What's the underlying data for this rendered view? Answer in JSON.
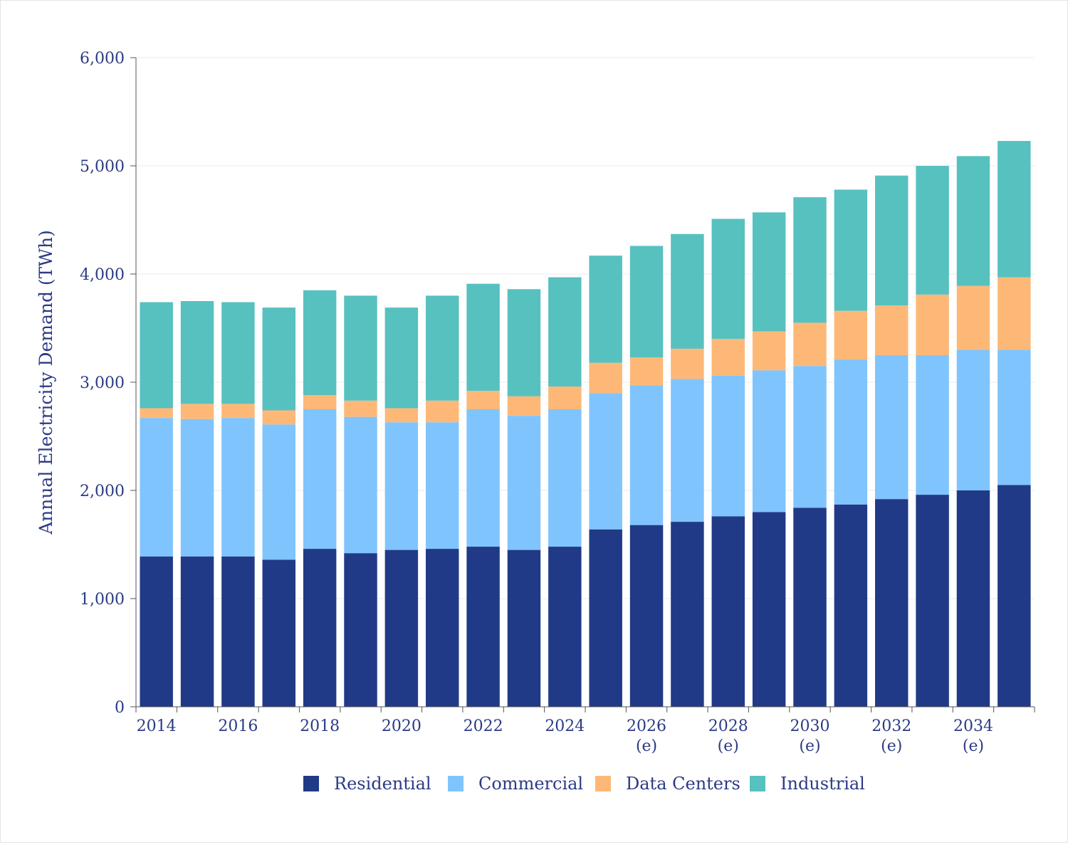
{
  "chart_data": {
    "type": "bar",
    "stacked": true,
    "title": "",
    "xlabel": "",
    "ylabel": "Annual Electricity Demand (TWh)",
    "ylim": [
      0,
      6000
    ],
    "yticks": [
      "0",
      "1,000",
      "2,000",
      "3,000",
      "4,000",
      "5,000",
      "6,000"
    ],
    "ytick_values": [
      0,
      1000,
      2000,
      3000,
      4000,
      5000,
      6000
    ],
    "grid": true,
    "legend_position": "bottom-center",
    "categories": [
      "2014",
      "2015",
      "2016",
      "2017",
      "2018",
      "2019",
      "2020",
      "2021",
      "2022",
      "2023",
      "2024",
      "2025",
      "2026",
      "2027",
      "2028",
      "2029",
      "2030",
      "2031",
      "2032",
      "2033",
      "2034",
      "2035"
    ],
    "x_tick_labels": [
      {
        "year": "2014",
        "suffix": ""
      },
      {
        "year": "2016",
        "suffix": ""
      },
      {
        "year": "2018",
        "suffix": ""
      },
      {
        "year": "2020",
        "suffix": ""
      },
      {
        "year": "2022",
        "suffix": ""
      },
      {
        "year": "2024",
        "suffix": ""
      },
      {
        "year": "2026",
        "suffix": "(e)"
      },
      {
        "year": "2028",
        "suffix": "(e)"
      },
      {
        "year": "2030",
        "suffix": "(e)"
      },
      {
        "year": "2032",
        "suffix": "(e)"
      },
      {
        "year": "2034",
        "suffix": "(e)"
      }
    ],
    "series": [
      {
        "name": "Residential",
        "color": "#213a87",
        "values": [
          1390,
          1390,
          1390,
          1360,
          1460,
          1420,
          1450,
          1460,
          1480,
          1450,
          1480,
          1640,
          1680,
          1710,
          1760,
          1800,
          1840,
          1870,
          1920,
          1960,
          2000,
          2050
        ]
      },
      {
        "name": "Commercial",
        "color": "#80c4fd",
        "values": [
          1280,
          1270,
          1280,
          1250,
          1290,
          1260,
          1180,
          1170,
          1270,
          1240,
          1270,
          1260,
          1290,
          1320,
          1300,
          1310,
          1310,
          1340,
          1330,
          1290,
          1300,
          1250
        ]
      },
      {
        "name": "Data Centers",
        "color": "#fdb878",
        "values": [
          90,
          140,
          130,
          130,
          130,
          150,
          130,
          200,
          170,
          180,
          210,
          280,
          260,
          280,
          340,
          360,
          400,
          450,
          460,
          560,
          590,
          670
        ]
      },
      {
        "name": "Industrial",
        "color": "#57c1c0",
        "values": [
          980,
          950,
          940,
          950,
          970,
          970,
          930,
          970,
          990,
          990,
          1010,
          990,
          1030,
          1060,
          1110,
          1100,
          1160,
          1120,
          1200,
          1190,
          1200,
          1260
        ]
      }
    ]
  }
}
